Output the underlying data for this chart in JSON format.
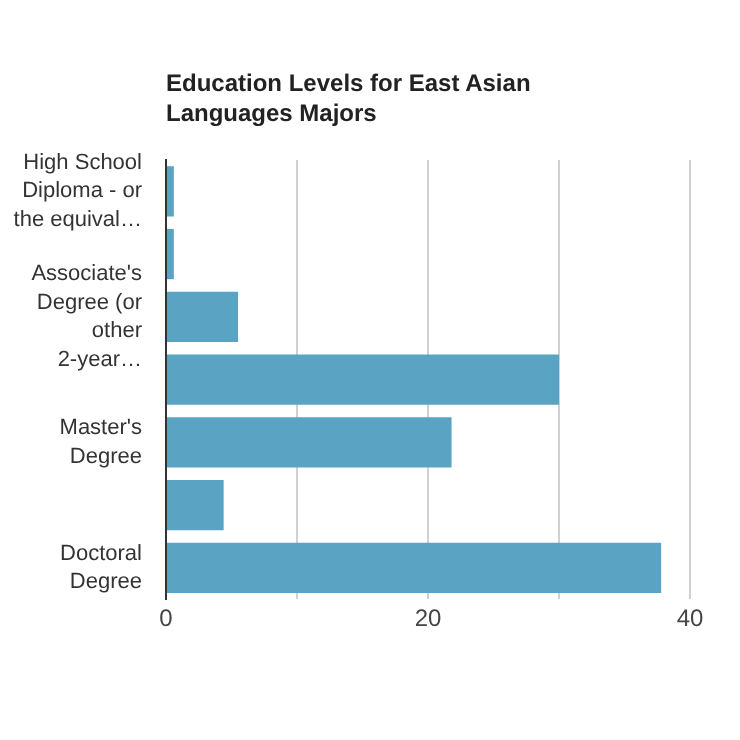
{
  "chart_data": {
    "type": "bar",
    "orientation": "horizontal",
    "title": "Education Levels for East Asian Languages Majors",
    "categories": [
      "High School Diploma - or the equival…",
      null,
      "Associate's Degree (or other 2-year…",
      null,
      "Master's Degree",
      null,
      "Doctoral Degree"
    ],
    "values": [
      0.6,
      0.6,
      5.5,
      30,
      21.8,
      4.4,
      37.8
    ],
    "color": "#5ba3c2",
    "xlim": [
      0,
      40
    ],
    "xticks": [
      0,
      {
        "value": 10,
        "label": null
      },
      20,
      {
        "value": 30,
        "label": null
      },
      40
    ],
    "grid": "x"
  }
}
